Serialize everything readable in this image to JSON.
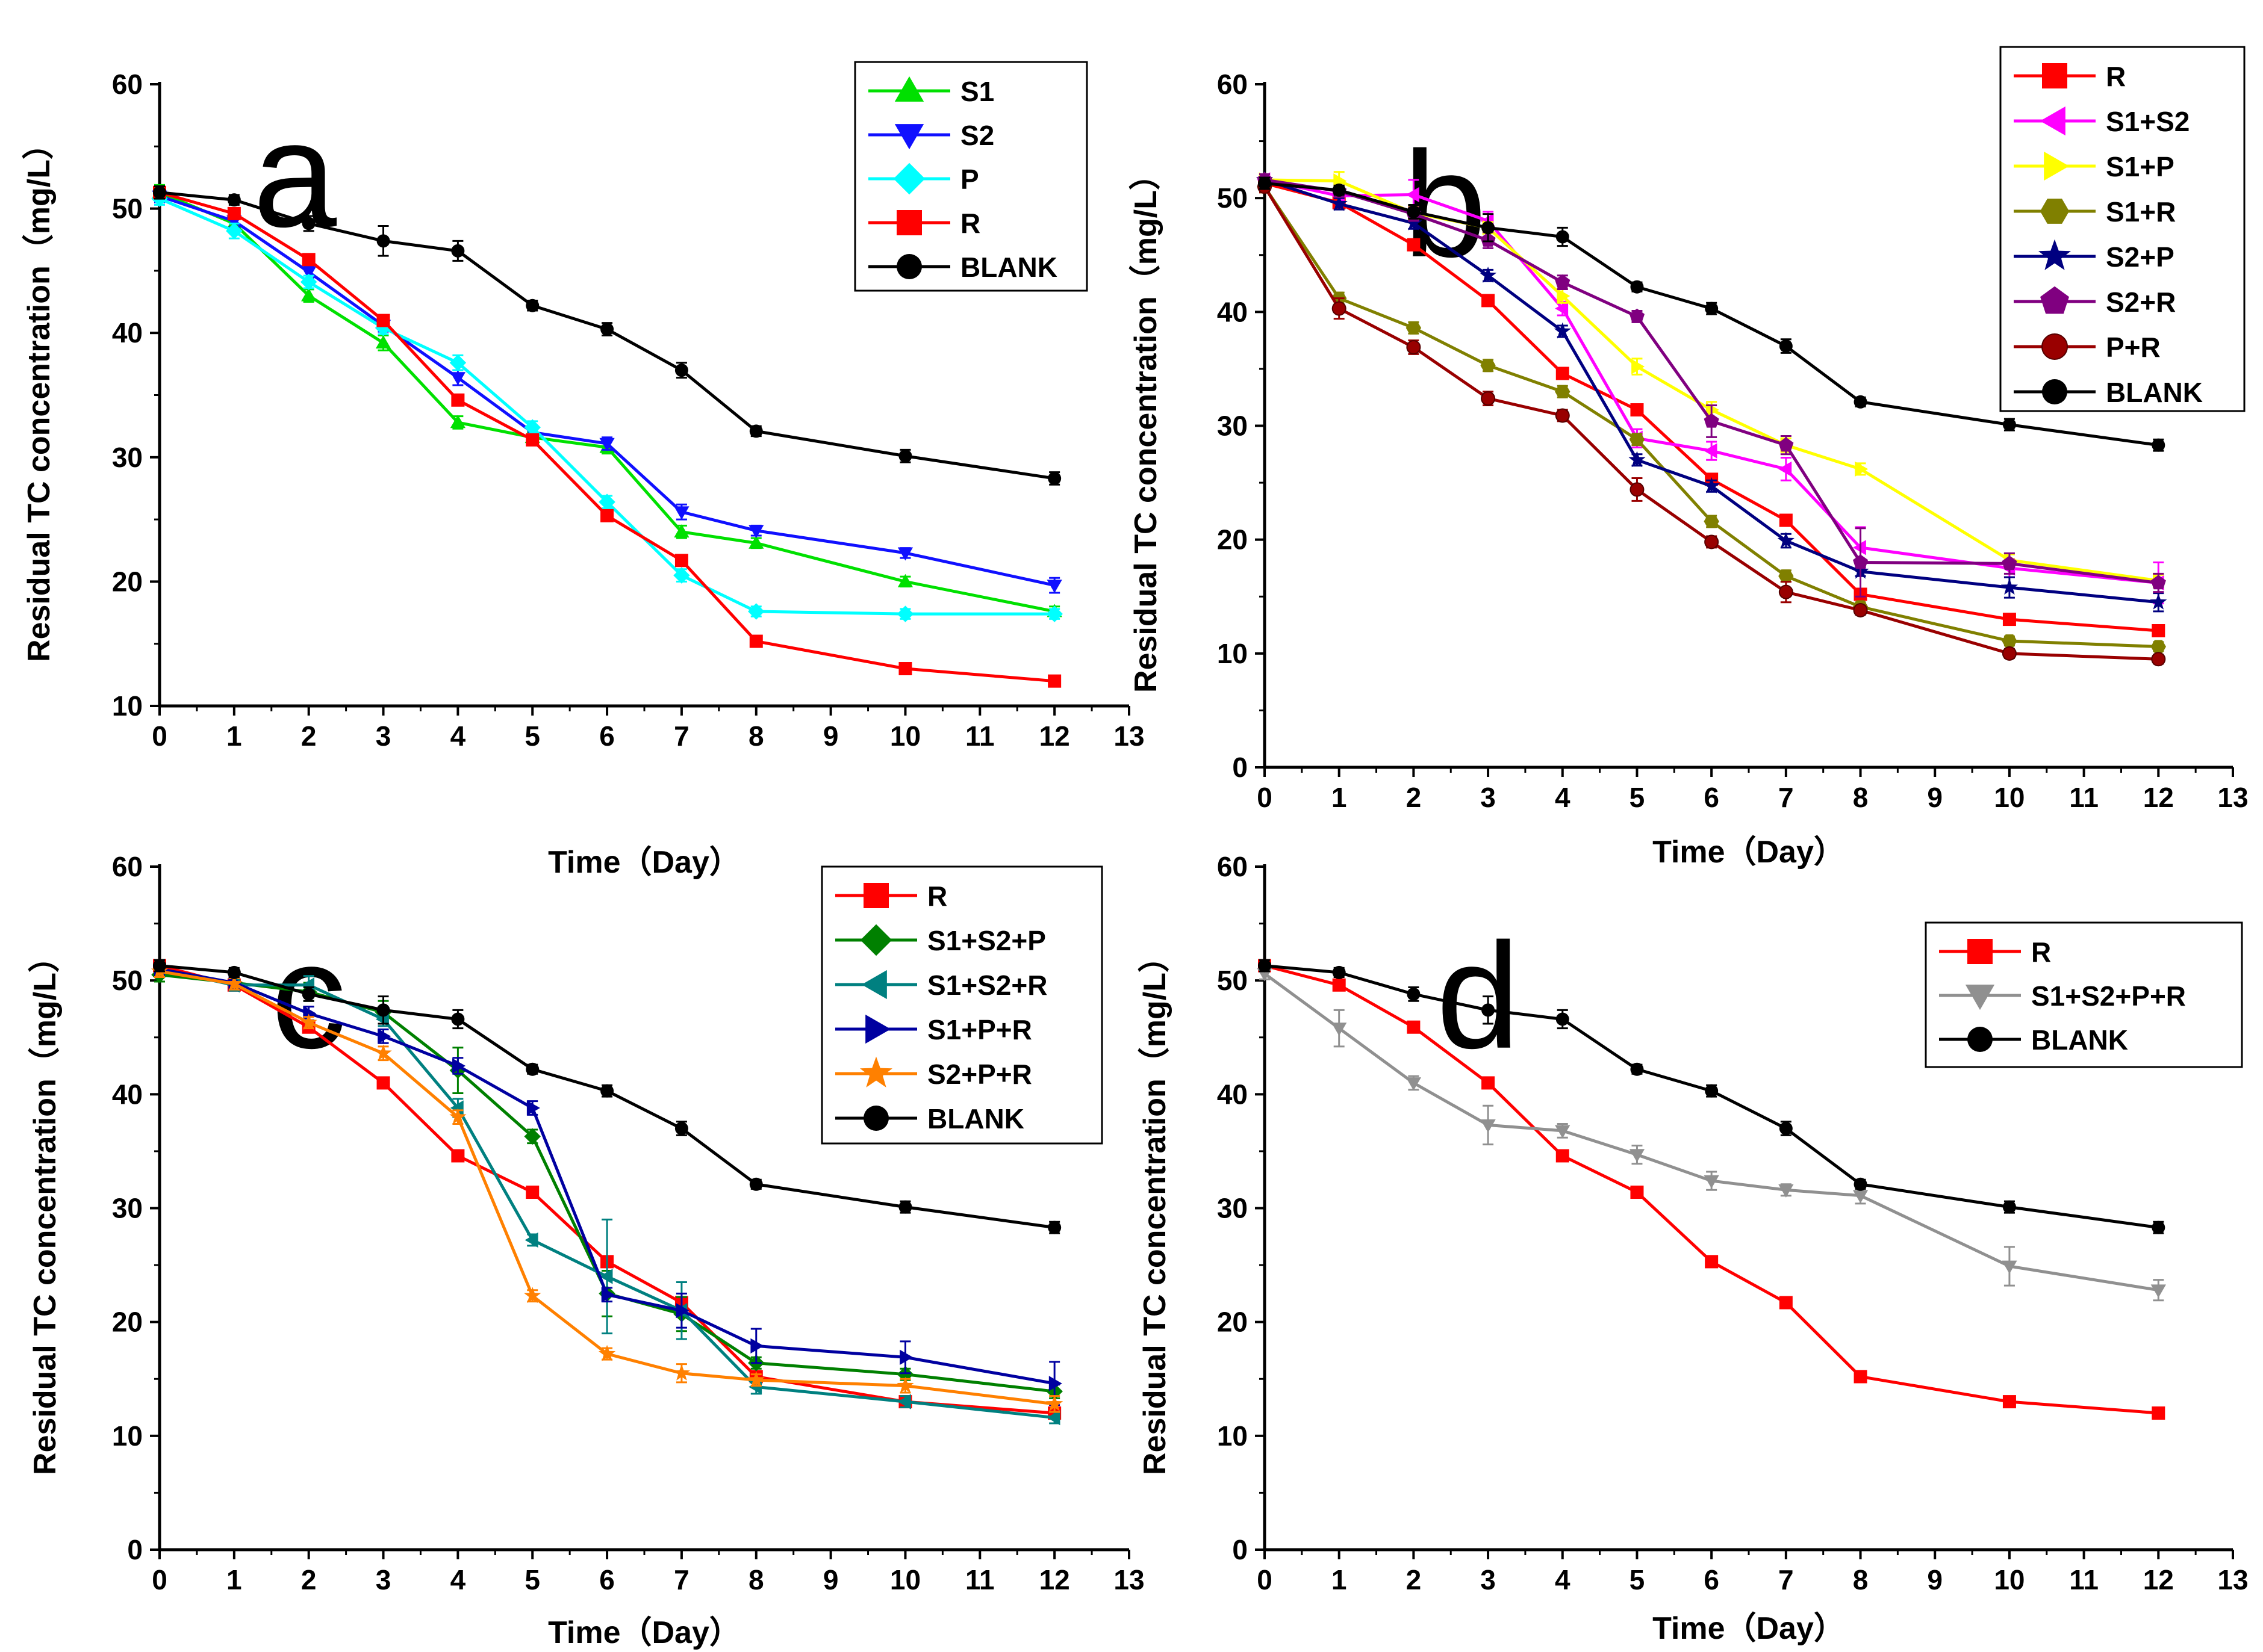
{
  "figure": {
    "x_axis": {
      "min": 0,
      "max": 13,
      "ticks": [
        0,
        1,
        2,
        3,
        4,
        5,
        6,
        7,
        8,
        9,
        10,
        11,
        12,
        13
      ]
    },
    "y_axis": {
      "min": 0,
      "max": 60,
      "ticks": [
        0,
        10,
        20,
        30,
        40,
        50,
        60
      ]
    },
    "xlabel": "Time（Day）",
    "ylabel": "Residual TC concentration（mg/L）"
  },
  "chart_data": [
    {
      "type": "line",
      "panel": "a",
      "xlabel": "Time（Day）",
      "ylabel": "Residual TC concentration（mg/L）",
      "xlim": [
        0,
        13
      ],
      "ylim": [
        10,
        60
      ],
      "yticks": [
        10,
        20,
        30,
        40,
        50,
        60
      ],
      "x": [
        0,
        1,
        2,
        3,
        4,
        5,
        6,
        7,
        8,
        10,
        12
      ],
      "legend_position": "top-right",
      "series": [
        {
          "name": "S1",
          "color": "#00e000",
          "marker": "triangle-up",
          "values": [
            51.3,
            48.8,
            43.0,
            39.2,
            32.8,
            31.6,
            30.8,
            24.0,
            23.1,
            20.0,
            17.6
          ],
          "errors": [
            0.6,
            0.5,
            0.5,
            0.6,
            0.5,
            0.4,
            0.5,
            0.5,
            0.4,
            0.4,
            0.4
          ]
        },
        {
          "name": "S2",
          "color": "#1010ff",
          "marker": "triangle-down",
          "values": [
            51.0,
            49.0,
            44.9,
            40.6,
            36.4,
            32.0,
            31.1,
            25.6,
            24.1,
            22.3,
            19.7
          ],
          "errors": [
            0.5,
            0.5,
            0.5,
            0.5,
            0.6,
            0.5,
            0.5,
            0.6,
            0.4,
            0.4,
            0.6
          ]
        },
        {
          "name": "P",
          "color": "#00ffff",
          "marker": "diamond",
          "values": [
            50.8,
            48.2,
            44.1,
            40.4,
            37.6,
            32.4,
            26.4,
            20.5,
            17.6,
            17.4,
            17.4
          ],
          "errors": [
            0.5,
            0.6,
            0.5,
            0.5,
            0.6,
            0.5,
            0.5,
            0.5,
            0.4,
            0.4,
            0.4
          ]
        },
        {
          "name": "R",
          "color": "#ff0000",
          "marker": "square",
          "values": [
            51.3,
            49.6,
            45.9,
            41.0,
            34.6,
            31.4,
            25.3,
            21.7,
            15.2,
            13.0,
            12.0
          ],
          "errors": [
            0.4,
            0.4,
            0.4,
            0.4,
            0.4,
            0.4,
            0.4,
            0.4,
            0.4,
            0.4,
            0.4
          ]
        },
        {
          "name": "BLANK",
          "color": "#000000",
          "marker": "circle",
          "values": [
            51.3,
            50.7,
            48.8,
            47.4,
            46.6,
            42.2,
            40.3,
            37.0,
            32.1,
            30.1,
            28.3
          ],
          "errors": [
            0.5,
            0.4,
            0.6,
            1.2,
            0.8,
            0.4,
            0.5,
            0.6,
            0.4,
            0.5,
            0.5
          ]
        }
      ]
    },
    {
      "type": "line",
      "panel": "b",
      "xlabel": "Time（Day）",
      "ylabel": "Residual TC concentration（mg/L）",
      "xlim": [
        0,
        13
      ],
      "ylim": [
        0,
        60
      ],
      "yticks": [
        0,
        10,
        20,
        30,
        40,
        50,
        60
      ],
      "x": [
        0,
        1,
        2,
        3,
        4,
        5,
        6,
        7,
        8,
        10,
        12
      ],
      "legend_position": "top-right",
      "series": [
        {
          "name": "R",
          "color": "#ff0000",
          "marker": "square",
          "values": [
            51.3,
            49.6,
            45.9,
            41.0,
            34.6,
            31.4,
            25.3,
            21.7,
            15.2,
            13.0,
            12.0
          ],
          "errors": [
            0.4,
            0.4,
            0.4,
            0.4,
            0.4,
            0.4,
            0.4,
            0.4,
            0.4,
            0.4,
            0.4
          ]
        },
        {
          "name": "S1+S2",
          "color": "#ff00ff",
          "marker": "triangle-left",
          "values": [
            51.6,
            50.2,
            50.3,
            48.0,
            40.3,
            28.9,
            27.8,
            26.2,
            19.3,
            17.5,
            16.2
          ],
          "errors": [
            0.5,
            0.6,
            1.3,
            0.8,
            0.6,
            0.8,
            0.8,
            1.0,
            1.8,
            0.8,
            1.8
          ]
        },
        {
          "name": "S1+P",
          "color": "#ffff00",
          "marker": "triangle-right",
          "values": [
            51.6,
            51.5,
            48.7,
            47.4,
            41.4,
            35.2,
            31.4,
            28.3,
            26.2,
            18.2,
            16.4
          ],
          "errors": [
            0.5,
            0.8,
            0.6,
            0.5,
            0.6,
            0.7,
            0.7,
            0.6,
            0.5,
            0.5,
            0.5
          ]
        },
        {
          "name": "S1+R",
          "color": "#808000",
          "marker": "hexagon",
          "values": [
            51.0,
            41.2,
            38.6,
            35.3,
            33.0,
            28.8,
            21.6,
            16.8,
            14.1,
            11.1,
            10.6
          ],
          "errors": [
            0.5,
            0.5,
            0.5,
            0.5,
            0.5,
            0.5,
            0.5,
            0.5,
            0.4,
            0.4,
            0.4
          ]
        },
        {
          "name": "S2+P",
          "color": "#000080",
          "marker": "star",
          "values": [
            51.6,
            49.5,
            47.8,
            43.2,
            38.3,
            27.0,
            24.7,
            19.9,
            17.2,
            15.8,
            14.5
          ],
          "errors": [
            0.5,
            0.5,
            0.5,
            0.5,
            0.5,
            0.5,
            0.5,
            0.6,
            0.4,
            0.9,
            0.8
          ]
        },
        {
          "name": "S2+R",
          "color": "#800080",
          "marker": "pentagon",
          "values": [
            51.6,
            50.6,
            48.6,
            46.3,
            42.6,
            39.6,
            30.4,
            28.3,
            18.0,
            17.9,
            16.2
          ],
          "errors": [
            0.5,
            0.5,
            0.6,
            0.7,
            0.6,
            0.5,
            1.4,
            0.8,
            3.0,
            0.9,
            0.8
          ]
        },
        {
          "name": "P+R",
          "color": "#990000",
          "marker": "ball",
          "values": [
            51.0,
            40.3,
            36.9,
            32.4,
            30.9,
            24.4,
            19.8,
            15.4,
            13.8,
            10.0,
            9.5
          ],
          "errors": [
            0.5,
            0.9,
            0.6,
            0.6,
            0.5,
            1.0,
            0.5,
            0.9,
            0.4,
            0.4,
            0.4
          ]
        },
        {
          "name": "BLANK",
          "color": "#000000",
          "marker": "circle",
          "values": [
            51.3,
            50.7,
            48.8,
            47.4,
            46.6,
            42.2,
            40.3,
            37.0,
            32.1,
            30.1,
            28.3
          ],
          "errors": [
            0.5,
            0.4,
            0.6,
            1.2,
            0.8,
            0.4,
            0.5,
            0.6,
            0.4,
            0.5,
            0.5
          ]
        }
      ]
    },
    {
      "type": "line",
      "panel": "c",
      "xlabel": "Time（Day）",
      "ylabel": "Residual TC concentration（mg/L）",
      "xlim": [
        0,
        13
      ],
      "ylim": [
        0,
        60
      ],
      "yticks": [
        0,
        10,
        20,
        30,
        40,
        50,
        60
      ],
      "x": [
        0,
        1,
        2,
        3,
        4,
        5,
        6,
        7,
        8,
        10,
        12
      ],
      "legend_position": "top-right",
      "series": [
        {
          "name": "R",
          "color": "#ff0000",
          "marker": "square",
          "values": [
            51.3,
            49.6,
            45.9,
            41.0,
            34.6,
            31.4,
            25.3,
            21.7,
            15.2,
            13.0,
            12.0
          ],
          "errors": [
            0.4,
            0.4,
            0.4,
            0.4,
            0.4,
            0.4,
            0.4,
            0.4,
            0.4,
            0.4,
            0.4
          ]
        },
        {
          "name": "S1+S2+P",
          "color": "#008000",
          "marker": "diamond",
          "values": [
            50.5,
            49.8,
            49.0,
            47.2,
            42.1,
            36.3,
            22.5,
            20.7,
            16.4,
            15.4,
            13.9
          ],
          "errors": [
            0.6,
            0.5,
            0.8,
            1.0,
            2.0,
            0.6,
            2.0,
            1.5,
            0.5,
            0.5,
            0.6
          ]
        },
        {
          "name": "S1+S2+R",
          "color": "#008080",
          "marker": "triangle-left",
          "values": [
            51.0,
            49.6,
            49.6,
            46.6,
            38.8,
            27.2,
            24.0,
            21.0,
            14.3,
            13.0,
            11.6
          ],
          "errors": [
            0.5,
            0.5,
            0.8,
            0.6,
            0.8,
            0.5,
            5.0,
            2.5,
            0.6,
            0.5,
            0.5
          ]
        },
        {
          "name": "S1+P+R",
          "color": "#0000a0",
          "marker": "triangle-right",
          "values": [
            51.0,
            49.8,
            47.1,
            45.1,
            42.5,
            38.8,
            22.4,
            21.0,
            17.9,
            16.9,
            14.6
          ],
          "errors": [
            0.5,
            0.5,
            0.6,
            0.6,
            0.7,
            0.6,
            0.6,
            1.5,
            1.5,
            1.4,
            1.9
          ]
        },
        {
          "name": "S2+P+R",
          "color": "#ff8000",
          "marker": "star",
          "values": [
            50.8,
            49.7,
            46.3,
            43.6,
            38.0,
            22.3,
            17.2,
            15.5,
            14.9,
            14.4,
            12.8
          ],
          "errors": [
            0.5,
            0.5,
            0.5,
            0.6,
            0.6,
            0.5,
            0.5,
            0.8,
            0.5,
            0.6,
            0.7
          ]
        },
        {
          "name": "BLANK",
          "color": "#000000",
          "marker": "circle",
          "values": [
            51.3,
            50.7,
            48.8,
            47.4,
            46.6,
            42.2,
            40.3,
            37.0,
            32.1,
            30.1,
            28.3
          ],
          "errors": [
            0.5,
            0.4,
            0.6,
            1.2,
            0.8,
            0.4,
            0.5,
            0.6,
            0.4,
            0.5,
            0.5
          ]
        }
      ]
    },
    {
      "type": "line",
      "panel": "d",
      "xlabel": "Time（Day）",
      "ylabel": "Residual TC concentration（mg/L）",
      "xlim": [
        0,
        13
      ],
      "ylim": [
        0,
        60
      ],
      "yticks": [
        0,
        10,
        20,
        30,
        40,
        50,
        60
      ],
      "x": [
        0,
        1,
        2,
        3,
        4,
        5,
        6,
        7,
        8,
        10,
        12
      ],
      "legend_position": "top-right",
      "series": [
        {
          "name": "R",
          "color": "#ff0000",
          "marker": "square",
          "values": [
            51.3,
            49.6,
            45.9,
            41.0,
            34.6,
            31.4,
            25.3,
            21.7,
            15.2,
            13.0,
            12.0
          ],
          "errors": [
            0.4,
            0.4,
            0.4,
            0.4,
            0.4,
            0.4,
            0.4,
            0.4,
            0.4,
            0.4,
            0.4
          ]
        },
        {
          "name": "S1+S2+P+R",
          "color": "#909090",
          "marker": "triangle-down",
          "values": [
            50.6,
            45.8,
            41.0,
            37.3,
            36.8,
            34.7,
            32.4,
            31.6,
            31.1,
            24.9,
            22.8
          ],
          "errors": [
            0.5,
            1.6,
            0.6,
            1.7,
            0.6,
            0.8,
            0.8,
            0.5,
            0.7,
            1.7,
            0.9
          ]
        },
        {
          "name": "BLANK",
          "color": "#000000",
          "marker": "circle",
          "values": [
            51.3,
            50.7,
            48.8,
            47.4,
            46.6,
            42.2,
            40.3,
            37.0,
            32.1,
            30.1,
            28.3
          ],
          "errors": [
            0.5,
            0.4,
            0.6,
            1.2,
            0.8,
            0.4,
            0.5,
            0.6,
            0.4,
            0.5,
            0.5
          ]
        }
      ]
    }
  ]
}
